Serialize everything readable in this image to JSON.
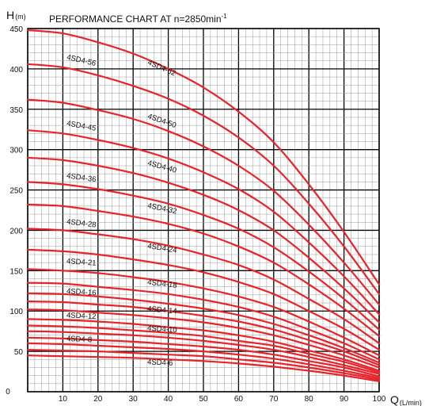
{
  "chart_data": {
    "type": "line",
    "title": "PERFORMANCE CHART AT n=2850min",
    "title_superscript": "-1",
    "ylabel": "H",
    "ylabel_unit": "(m)",
    "xlabel": "Q",
    "xlabel_unit": "(L/min)",
    "xlim": [
      0,
      100
    ],
    "ylim": [
      0,
      450
    ],
    "x_ticks": [
      "10",
      "20",
      "30",
      "40",
      "50",
      "60",
      "70",
      "80",
      "90",
      "100"
    ],
    "y_ticks": [
      "0",
      "50",
      "100",
      "150",
      "200",
      "250",
      "300",
      "350",
      "400",
      "450"
    ],
    "origin_label": "0",
    "grid": true,
    "curve_color": "#e8232a",
    "x": [
      0,
      10,
      20,
      30,
      40,
      50,
      60,
      70,
      80,
      90,
      100
    ],
    "series": [
      {
        "name": "4SD4-6",
        "label_at": [
          34,
          34
        ],
        "values": [
          45,
          44,
          43,
          42,
          40,
          38,
          35,
          31,
          26,
          20,
          13
        ]
      },
      {
        "name": "",
        "values": [
          52,
          51,
          50,
          48,
          46,
          44,
          40,
          36,
          30,
          23,
          15
        ]
      },
      {
        "name": "4SD4-8",
        "label_at": [
          11,
          63
        ],
        "values": [
          60,
          59,
          57,
          55,
          53,
          50,
          46,
          41,
          34,
          26,
          17
        ]
      },
      {
        "name": "",
        "values": [
          67,
          66,
          64,
          62,
          59,
          56,
          52,
          46,
          38,
          30,
          19
        ]
      },
      {
        "name": "4SD4-10",
        "label_at": [
          34,
          76
        ],
        "values": [
          75,
          74,
          72,
          70,
          67,
          63,
          58,
          52,
          43,
          33,
          22
        ]
      },
      {
        "name": "",
        "values": [
          82,
          81,
          79,
          76,
          73,
          69,
          63,
          57,
          47,
          37,
          24
        ]
      },
      {
        "name": "4SD4-12",
        "label_at": [
          11,
          92
        ],
        "values": [
          90,
          89,
          87,
          84,
          80,
          76,
          70,
          62,
          51,
          40,
          26
        ]
      },
      {
        "name": "4SD4-14",
        "label_at": [
          34,
          100
        ],
        "values": [
          102,
          101,
          98,
          95,
          91,
          86,
          79,
          70,
          58,
          45,
          30
        ]
      },
      {
        "name": "",
        "values": [
          112,
          111,
          108,
          105,
          100,
          94,
          87,
          77,
          64,
          50,
          33
        ]
      },
      {
        "name": "4SD4-16",
        "label_at": [
          11,
          122
        ],
        "values": [
          122,
          121,
          118,
          114,
          109,
          103,
          95,
          84,
          70,
          54,
          36
        ]
      },
      {
        "name": "4SD4-18",
        "label_at": [
          34,
          133
        ],
        "values": [
          135,
          134,
          130,
          126,
          121,
          114,
          105,
          93,
          77,
          60,
          40
        ]
      },
      {
        "name": "4SD4-21",
        "label_at": [
          11,
          159
        ],
        "values": [
          152,
          150,
          147,
          142,
          136,
          128,
          118,
          105,
          87,
          67,
          45
        ]
      },
      {
        "name": "4SD4-24",
        "label_at": [
          34,
          178
        ],
        "values": [
          176,
          174,
          170,
          164,
          157,
          148,
          136,
          121,
          100,
          78,
          52
        ]
      },
      {
        "name": "4SD4-28",
        "label_at": [
          11,
          208
        ],
        "values": [
          202,
          200,
          195,
          189,
          181,
          170,
          157,
          139,
          115,
          90,
          60
        ]
      },
      {
        "name": "4SD4-32",
        "label_at": [
          34,
          228
        ],
        "values": [
          232,
          230,
          224,
          217,
          208,
          196,
          180,
          160,
          133,
          103,
          69
        ]
      },
      {
        "name": "4SD4-36",
        "label_at": [
          11,
          265
        ],
        "values": [
          260,
          257,
          251,
          243,
          233,
          219,
          202,
          179,
          149,
          115,
          77
        ]
      },
      {
        "name": "4SD4-40",
        "label_at": [
          34,
          281
        ],
        "values": [
          290,
          287,
          280,
          271,
          259,
          244,
          225,
          200,
          166,
          128,
          86
        ]
      },
      {
        "name": "4SD4-45",
        "label_at": [
          11,
          330
        ],
        "values": [
          324,
          320,
          312,
          302,
          289,
          272,
          251,
          223,
          185,
          143,
          96
        ]
      },
      {
        "name": "4SD4-50",
        "label_at": [
          34,
          339
        ],
        "values": [
          362,
          358,
          349,
          338,
          323,
          304,
          280,
          249,
          207,
          160,
          108
        ]
      },
      {
        "name": "4SD4-56",
        "label_at": [
          11,
          412
        ],
        "values": [
          406,
          402,
          392,
          379,
          363,
          342,
          315,
          280,
          233,
          180,
          121
        ]
      },
      {
        "name": "4SD4-62",
        "label_at": [
          34,
          406
        ],
        "values": [
          448,
          444,
          433,
          419,
          400,
          377,
          347,
          309,
          257,
          198,
          133
        ]
      }
    ]
  }
}
